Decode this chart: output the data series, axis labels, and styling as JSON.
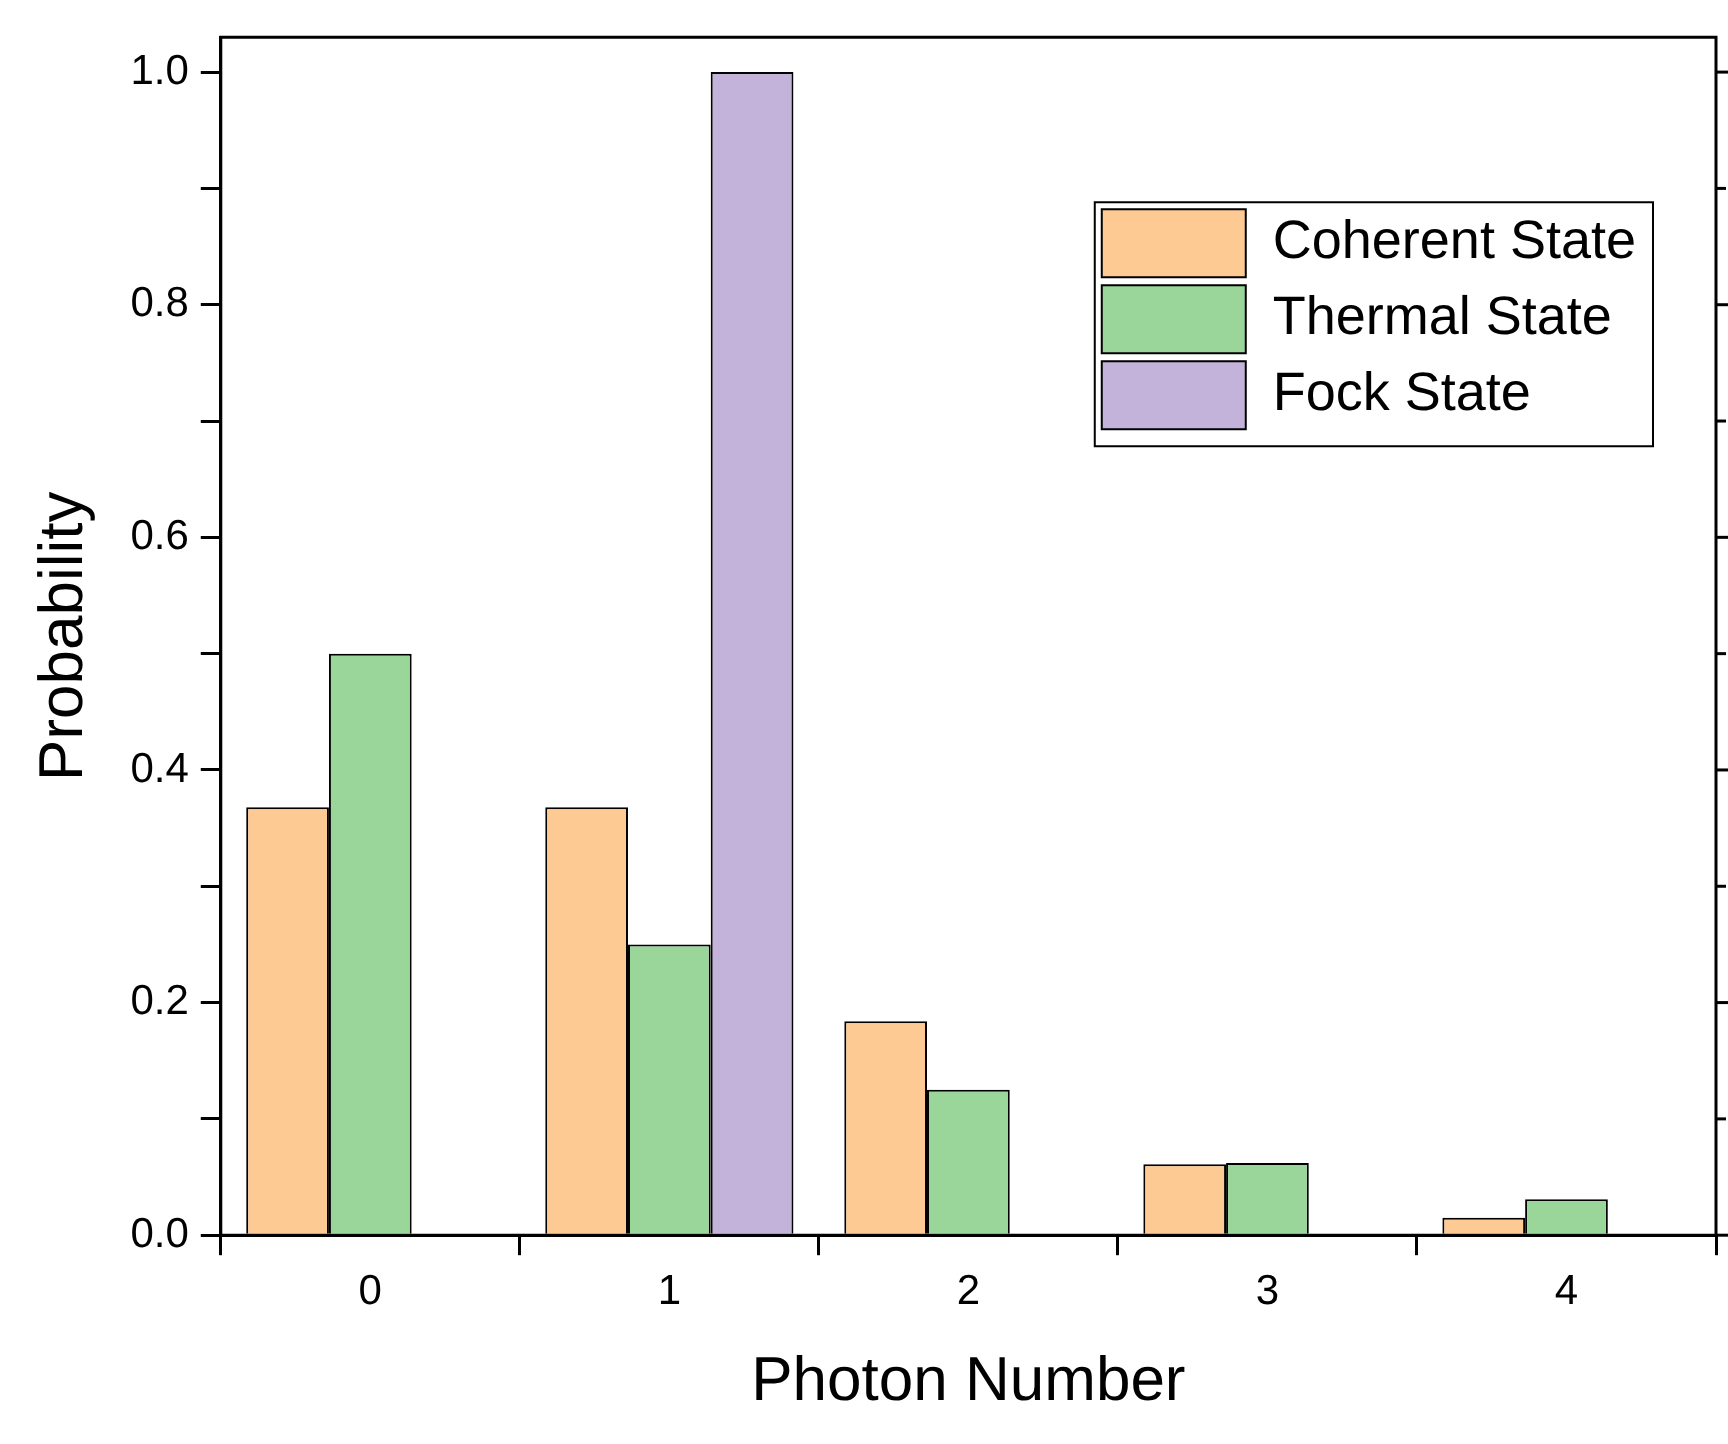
{
  "chart_data": {
    "type": "bar",
    "xlabel": "Photon Number",
    "ylabel": "Probability",
    "categories": [
      "0",
      "1",
      "2",
      "3",
      "4"
    ],
    "series": [
      {
        "name": "Coherent State",
        "color": "#fdca93",
        "values": [
          0.368,
          0.368,
          0.184,
          0.061,
          0.015
        ]
      },
      {
        "name": "Thermal State",
        "color": "#9ad69a",
        "values": [
          0.5,
          0.25,
          0.125,
          0.062,
          0.031
        ]
      },
      {
        "name": "Fock State",
        "color": "#c3b2d9",
        "values": [
          null,
          1.0,
          null,
          null,
          null
        ]
      }
    ],
    "ylim": [
      0,
      1.03
    ],
    "yticks": [
      {
        "value": 0,
        "label": "0.0"
      },
      {
        "value": 0.1,
        "label": null
      },
      0.2,
      {
        "value": 0.3,
        "label": null
      },
      0.4,
      {
        "value": 0.5,
        "label": null
      },
      0.6,
      {
        "value": 0.7,
        "label": null
      },
      0.8,
      {
        "value": 0.9,
        "label": null
      },
      {
        "value": 1,
        "label": "1.0"
      }
    ],
    "grid": false,
    "legend": "top right"
  }
}
